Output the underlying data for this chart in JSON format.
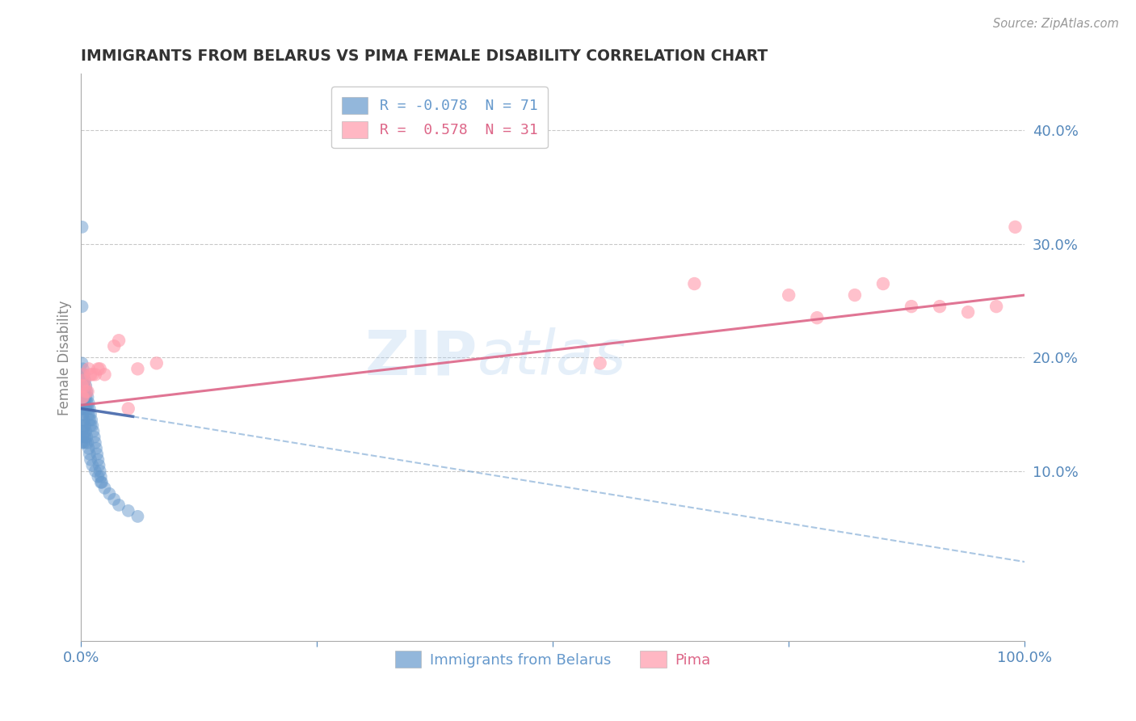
{
  "title": "IMMIGRANTS FROM BELARUS VS PIMA FEMALE DISABILITY CORRELATION CHART",
  "source": "Source: ZipAtlas.com",
  "ylabel": "Female Disability",
  "xlim": [
    0.0,
    1.0
  ],
  "ylim": [
    -0.05,
    0.45
  ],
  "yticks": [
    0.1,
    0.2,
    0.3,
    0.4
  ],
  "ytick_labels": [
    "10.0%",
    "20.0%",
    "30.0%",
    "40.0%"
  ],
  "xticks": [
    0.0,
    0.25,
    0.5,
    0.75,
    1.0
  ],
  "xtick_labels": [
    "0.0%",
    "",
    "",
    "",
    "100.0%"
  ],
  "xtick_minor": [
    0.25,
    0.5,
    0.75
  ],
  "legend_label_blue": "R = -0.078  N = 71",
  "legend_label_pink": "R =  0.578  N = 31",
  "blue_color": "#6699CC",
  "pink_color": "#FF99AA",
  "pink_line_color": "#DD6688",
  "blue_line_color": "#4466AA",
  "title_color": "#333333",
  "axis_color": "#5588BB",
  "watermark_color": "#AACCEE",
  "blue_points_x": [
    0.001,
    0.001,
    0.001,
    0.001,
    0.002,
    0.002,
    0.002,
    0.002,
    0.003,
    0.003,
    0.003,
    0.003,
    0.004,
    0.004,
    0.004,
    0.005,
    0.005,
    0.005,
    0.006,
    0.006,
    0.007,
    0.007,
    0.008,
    0.008,
    0.009,
    0.009,
    0.01,
    0.01,
    0.011,
    0.012,
    0.013,
    0.014,
    0.015,
    0.016,
    0.017,
    0.018,
    0.019,
    0.02,
    0.021,
    0.022,
    0.001,
    0.001,
    0.001,
    0.001,
    0.002,
    0.002,
    0.002,
    0.003,
    0.003,
    0.003,
    0.004,
    0.004,
    0.005,
    0.005,
    0.006,
    0.007,
    0.008,
    0.009,
    0.01,
    0.012,
    0.015,
    0.018,
    0.021,
    0.025,
    0.03,
    0.035,
    0.04,
    0.05,
    0.06,
    0.001,
    0.001
  ],
  "blue_points_y": [
    0.195,
    0.185,
    0.175,
    0.165,
    0.19,
    0.18,
    0.17,
    0.16,
    0.185,
    0.175,
    0.165,
    0.155,
    0.18,
    0.17,
    0.16,
    0.175,
    0.165,
    0.155,
    0.17,
    0.16,
    0.165,
    0.155,
    0.16,
    0.15,
    0.155,
    0.145,
    0.15,
    0.14,
    0.145,
    0.14,
    0.135,
    0.13,
    0.125,
    0.12,
    0.115,
    0.11,
    0.105,
    0.1,
    0.095,
    0.09,
    0.155,
    0.145,
    0.135,
    0.125,
    0.15,
    0.14,
    0.13,
    0.145,
    0.135,
    0.125,
    0.14,
    0.13,
    0.135,
    0.125,
    0.13,
    0.125,
    0.12,
    0.115,
    0.11,
    0.105,
    0.1,
    0.095,
    0.09,
    0.085,
    0.08,
    0.075,
    0.07,
    0.065,
    0.06,
    0.315,
    0.245
  ],
  "pink_points_x": [
    0.001,
    0.001,
    0.002,
    0.002,
    0.003,
    0.004,
    0.005,
    0.007,
    0.008,
    0.01,
    0.012,
    0.015,
    0.018,
    0.02,
    0.025,
    0.035,
    0.04,
    0.05,
    0.06,
    0.08,
    0.55,
    0.65,
    0.75,
    0.78,
    0.82,
    0.85,
    0.88,
    0.91,
    0.94,
    0.97,
    0.99
  ],
  "pink_points_y": [
    0.175,
    0.165,
    0.185,
    0.165,
    0.18,
    0.175,
    0.17,
    0.17,
    0.19,
    0.185,
    0.185,
    0.185,
    0.19,
    0.19,
    0.185,
    0.21,
    0.215,
    0.155,
    0.19,
    0.195,
    0.195,
    0.265,
    0.255,
    0.235,
    0.255,
    0.265,
    0.245,
    0.245,
    0.24,
    0.245,
    0.315
  ],
  "blue_solid_line": [
    [
      0.0,
      0.155
    ],
    [
      0.055,
      0.148
    ]
  ],
  "blue_dashed_line": [
    [
      0.055,
      0.148
    ],
    [
      1.0,
      0.02
    ]
  ],
  "pink_solid_line": [
    [
      0.0,
      0.158
    ],
    [
      1.0,
      0.255
    ]
  ]
}
